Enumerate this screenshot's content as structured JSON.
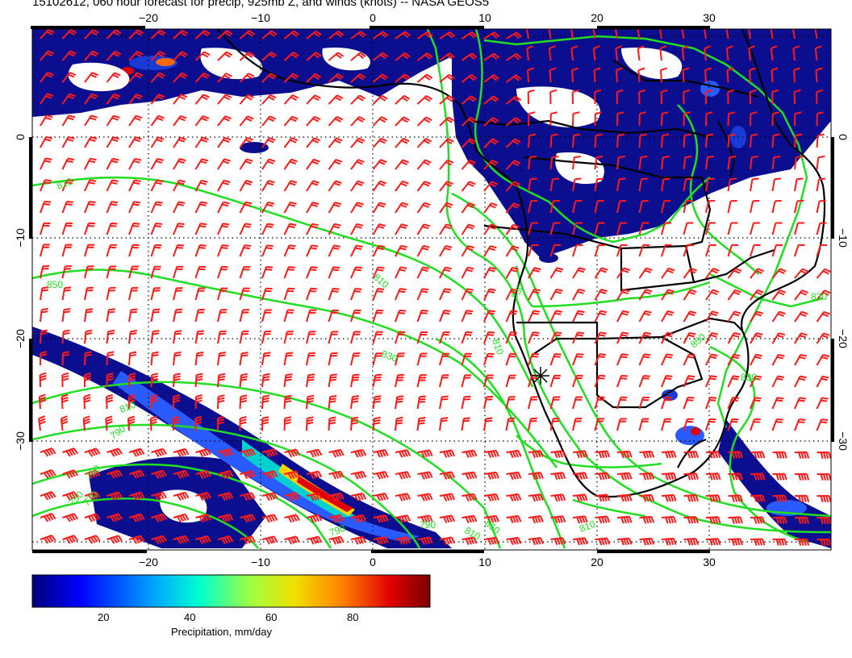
{
  "title": "15102612, 060 hour forecast for precip, 925mb Z, and winds (knots) -- NASA GEOS5",
  "map": {
    "lon_ticks": [
      "−20",
      "−10",
      "0",
      "10",
      "20",
      "30"
    ],
    "lat_ticks": [
      "0",
      "−10",
      "−20",
      "−30"
    ],
    "contour_labels": [
      "810",
      "850",
      "810",
      "830",
      "750",
      "810",
      "790",
      "770",
      "750",
      "810",
      "830",
      "850",
      "830",
      "790",
      "810",
      "850",
      "810",
      "830",
      "790"
    ],
    "colors": {
      "precip_dark": "#0b0f8f",
      "precip_mid": "#1a3ad6",
      "contour": "#22dd22",
      "wind_barb": "#ff1a1a",
      "coast": "#000000"
    }
  },
  "colorbar": {
    "labels": [
      "20",
      "40",
      "60",
      "80"
    ],
    "title": "Precipitation, mm/day",
    "colors": [
      "#00007a",
      "#0000ff",
      "#00a0ff",
      "#00ffd0",
      "#a0ff40",
      "#f0e000",
      "#ff8000",
      "#e00000",
      "#7a0000"
    ]
  }
}
